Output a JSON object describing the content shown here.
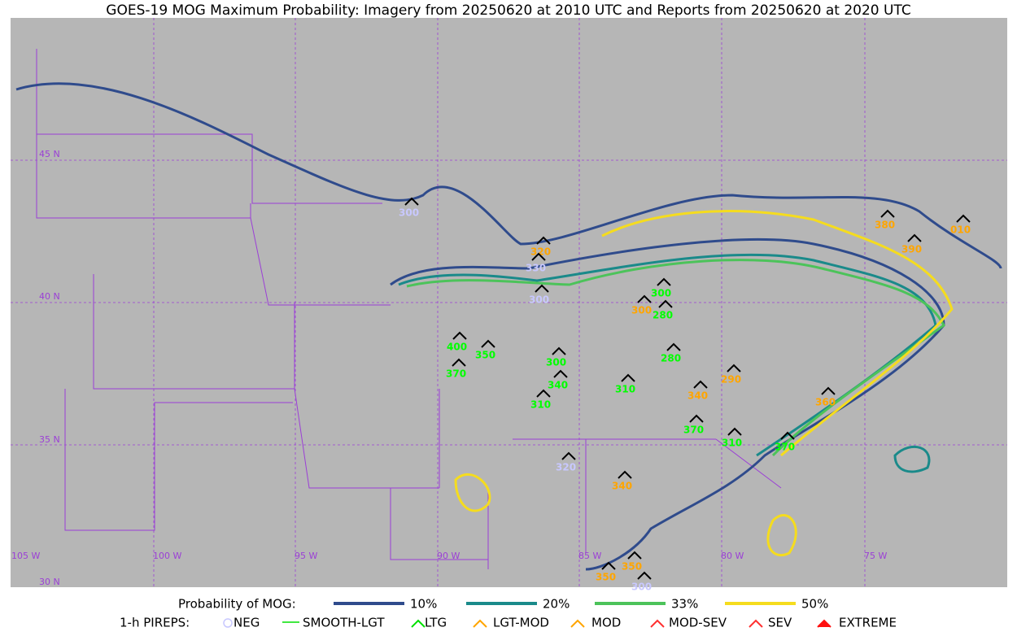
{
  "title": "GOES-19 MOG Maximum Probability: Imagery from 20250620 at 2010 UTC and Reports from 20250620 at 2020 UTC",
  "map": {
    "lat_labels": [
      "45 N",
      "40 N",
      "35 N",
      "30 N"
    ],
    "lon_labels": [
      "105 W",
      "100 W",
      "95 W",
      "90 W",
      "85 W",
      "80 W",
      "75 W"
    ],
    "pireps": [
      {
        "label": "300",
        "color": "#c8c8ff"
      },
      {
        "label": "320",
        "color": "#ffa500"
      },
      {
        "label": "330",
        "color": "#c8c8ff"
      },
      {
        "label": "300",
        "color": "#c8c8ff"
      },
      {
        "label": "400",
        "color": "#00ff00"
      },
      {
        "label": "350",
        "color": "#00ff00"
      },
      {
        "label": "370",
        "color": "#00ff00"
      },
      {
        "label": "300",
        "color": "#00ff00"
      },
      {
        "label": "340",
        "color": "#00ff00"
      },
      {
        "label": "310",
        "color": "#00ff00"
      },
      {
        "label": "310",
        "color": "#00ff00"
      },
      {
        "label": "300",
        "color": "#00ff00"
      },
      {
        "label": "280",
        "color": "#00ff00"
      },
      {
        "label": "300",
        "color": "#ffa500"
      },
      {
        "label": "280",
        "color": "#00ff00"
      },
      {
        "label": "290",
        "color": "#ffa500"
      },
      {
        "label": "340",
        "color": "#ffa500"
      },
      {
        "label": "370",
        "color": "#00ff00"
      },
      {
        "label": "310",
        "color": "#00ff00"
      },
      {
        "label": "370",
        "color": "#00ff00"
      },
      {
        "label": "360",
        "color": "#ffa500"
      },
      {
        "label": "320",
        "color": "#c8c8ff"
      },
      {
        "label": "340",
        "color": "#ffa500"
      },
      {
        "label": "350",
        "color": "#ffa500"
      },
      {
        "label": "350",
        "color": "#ffa500"
      },
      {
        "label": "300",
        "color": "#c8c8ff"
      },
      {
        "label": "380",
        "color": "#ffa500"
      },
      {
        "label": "390",
        "color": "#ffa500"
      },
      {
        "label": "010",
        "color": "#ffa500"
      }
    ]
  },
  "legend": {
    "probability_title": "Probability of MOG:",
    "probability_levels": [
      {
        "label": "10%",
        "color": "#2f4b8c"
      },
      {
        "label": "20%",
        "color": "#1a8a8a"
      },
      {
        "label": "33%",
        "color": "#4cc35a"
      },
      {
        "label": "50%",
        "color": "#f5dc1e"
      }
    ],
    "pirep_title": "1-h PIREPS:",
    "pirep_types": [
      {
        "label": "NEG",
        "color": "#c8c8ff"
      },
      {
        "label": "SMOOTH-LGT",
        "color": "#00e000"
      },
      {
        "label": "LTG",
        "color": "#00e000"
      },
      {
        "label": "LGT-MOD",
        "color": "#ffa500"
      },
      {
        "label": "MOD",
        "color": "#ffa500"
      },
      {
        "label": "MOD-SEV",
        "color": "#ff3030"
      },
      {
        "label": "SEV",
        "color": "#ff3030"
      },
      {
        "label": "EXTREME",
        "color": "#ff1010"
      }
    ]
  }
}
